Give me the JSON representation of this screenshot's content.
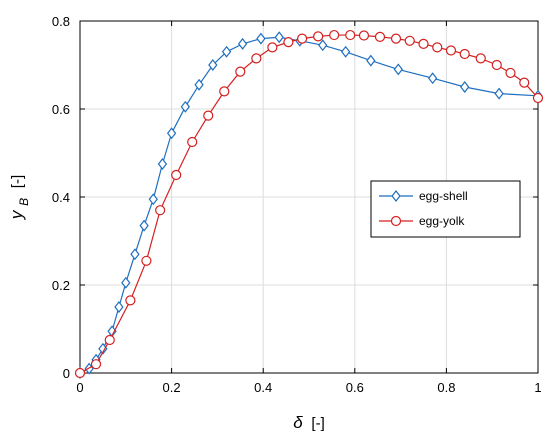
{
  "chart_data": {
    "type": "line",
    "title": "",
    "xlabel": {
      "symbol": "δ",
      "unit": "[-]"
    },
    "ylabel": {
      "symbol": "y",
      "subscript": "B",
      "unit": "[-]"
    },
    "xlim": [
      0,
      1
    ],
    "ylim": [
      0,
      0.8
    ],
    "xticks": [
      0,
      0.2,
      0.4,
      0.6,
      0.8,
      1
    ],
    "xtick_labels": [
      "0",
      "0.2",
      "0.4",
      "0.6",
      "0.8",
      "1"
    ],
    "yticks": [
      0,
      0.2,
      0.4,
      0.6,
      0.8
    ],
    "ytick_labels": [
      "0",
      "0.2",
      "0.4",
      "0.6",
      "0.8"
    ],
    "grid": true,
    "legend_position": "center-right",
    "series": [
      {
        "name": "egg-shell",
        "color": "#1f6fbf",
        "marker": "diamond",
        "x": [
          0,
          0.02,
          0.035,
          0.05,
          0.07,
          0.085,
          0.1,
          0.12,
          0.14,
          0.16,
          0.18,
          0.2,
          0.23,
          0.26,
          0.29,
          0.32,
          0.355,
          0.395,
          0.435,
          0.48,
          0.53,
          0.58,
          0.635,
          0.695,
          0.77,
          0.84,
          0.915,
          1
        ],
        "y": [
          0,
          0.01,
          0.03,
          0.055,
          0.095,
          0.15,
          0.205,
          0.27,
          0.335,
          0.395,
          0.475,
          0.545,
          0.605,
          0.655,
          0.7,
          0.73,
          0.748,
          0.76,
          0.763,
          0.755,
          0.745,
          0.73,
          0.71,
          0.69,
          0.67,
          0.65,
          0.635,
          0.63
        ]
      },
      {
        "name": "egg-yolk",
        "color": "#d42020",
        "marker": "circle",
        "x": [
          0,
          0.035,
          0.065,
          0.11,
          0.145,
          0.175,
          0.21,
          0.245,
          0.28,
          0.315,
          0.35,
          0.385,
          0.42,
          0.455,
          0.485,
          0.52,
          0.555,
          0.59,
          0.62,
          0.655,
          0.69,
          0.72,
          0.75,
          0.78,
          0.81,
          0.84,
          0.875,
          0.91,
          0.94,
          0.97,
          1
        ],
        "y": [
          0,
          0.02,
          0.075,
          0.165,
          0.255,
          0.37,
          0.45,
          0.525,
          0.585,
          0.64,
          0.685,
          0.715,
          0.74,
          0.752,
          0.76,
          0.765,
          0.768,
          0.768,
          0.767,
          0.764,
          0.76,
          0.755,
          0.748,
          0.74,
          0.733,
          0.725,
          0.715,
          0.7,
          0.682,
          0.66,
          0.625
        ]
      }
    ]
  }
}
